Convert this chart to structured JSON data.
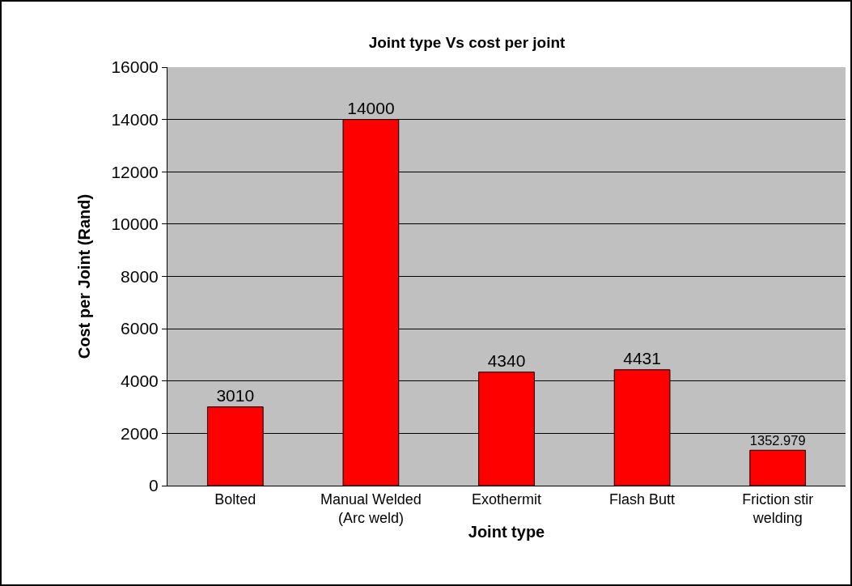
{
  "chart_data": {
    "type": "bar",
    "title": "Joint type Vs cost per joint",
    "xlabel": "Joint type",
    "ylabel": "Cost per Joint (Rand)",
    "categories": [
      "Bolted",
      "Manual Welded (Arc weld)",
      "Exothermit",
      "Flash Butt",
      "Friction stir welding"
    ],
    "values": [
      3010,
      14000,
      4340,
      4431,
      1352.979
    ],
    "color": "#ff0000",
    "ylim": [
      0,
      16000
    ],
    "yticks": [
      0,
      2000,
      4000,
      6000,
      8000,
      10000,
      12000,
      14000,
      16000
    ],
    "grid": "y",
    "data_labels": true,
    "legend": false
  }
}
